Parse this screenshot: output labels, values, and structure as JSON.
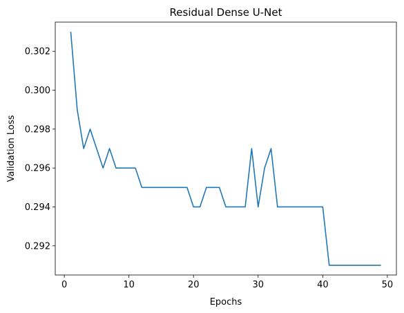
{
  "chart_data": {
    "type": "line",
    "title": "Residual Dense U-Net",
    "xlabel": "Epochs",
    "ylabel": "Validation Loss",
    "xlim": [
      -1.4,
      51.4
    ],
    "ylim": [
      0.2905,
      0.3035
    ],
    "xticks": [
      0,
      10,
      20,
      30,
      40,
      50
    ],
    "xtick_labels": [
      "0",
      "10",
      "20",
      "30",
      "40",
      "50"
    ],
    "yticks": [
      0.292,
      0.294,
      0.296,
      0.298,
      0.3,
      0.302
    ],
    "ytick_labels": [
      "0.292",
      "0.294",
      "0.296",
      "0.298",
      "0.300",
      "0.302"
    ],
    "grid": false,
    "series": [
      {
        "color": "#1f77b4",
        "x": [
          1,
          2,
          3,
          4,
          5,
          6,
          7,
          8,
          9,
          10,
          11,
          12,
          13,
          14,
          15,
          16,
          17,
          18,
          19,
          20,
          21,
          22,
          23,
          24,
          25,
          26,
          27,
          28,
          29,
          30,
          31,
          32,
          33,
          34,
          35,
          36,
          37,
          38,
          39,
          40,
          41,
          42,
          43,
          44,
          45,
          46,
          47,
          48,
          49
        ],
        "y": [
          0.303,
          0.299,
          0.297,
          0.298,
          0.297,
          0.296,
          0.297,
          0.296,
          0.296,
          0.296,
          0.296,
          0.295,
          0.295,
          0.295,
          0.295,
          0.295,
          0.295,
          0.295,
          0.295,
          0.294,
          0.294,
          0.295,
          0.295,
          0.295,
          0.294,
          0.294,
          0.294,
          0.294,
          0.297,
          0.294,
          0.296,
          0.297,
          0.294,
          0.294,
          0.294,
          0.294,
          0.294,
          0.294,
          0.294,
          0.294,
          0.291,
          0.291,
          0.291,
          0.291,
          0.291,
          0.291,
          0.291,
          0.291,
          0.291
        ]
      }
    ]
  }
}
